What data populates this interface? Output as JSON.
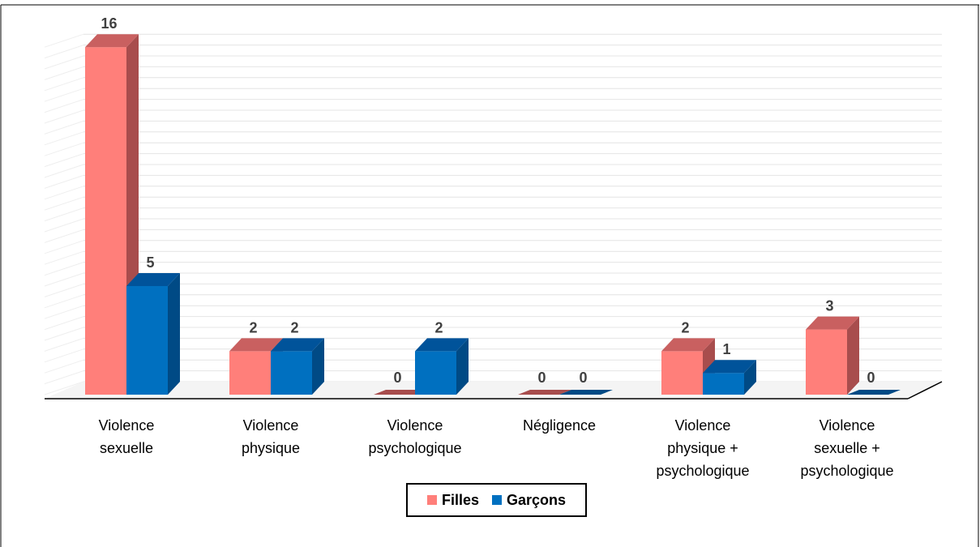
{
  "chart_data": {
    "type": "bar",
    "categories": [
      [
        "Violence",
        "sexuelle"
      ],
      [
        "Violence",
        "physique"
      ],
      [
        "Violence",
        "psychologique"
      ],
      [
        "Négligence"
      ],
      [
        "Violence",
        "physique +",
        "psychologique"
      ],
      [
        "Violence",
        "sexuelle +",
        "psychologique"
      ]
    ],
    "series": [
      {
        "name": "Filles",
        "values": [
          16,
          2,
          0,
          0,
          2,
          3
        ]
      },
      {
        "name": "Garçons",
        "values": [
          5,
          2,
          2,
          0,
          1,
          0
        ]
      }
    ],
    "ylim": [
      0,
      16
    ],
    "grid": true,
    "legend": "bottom",
    "colors": {
      "Filles": {
        "front": "#ff7f7a",
        "side": "#a84d4d",
        "top": "#c96060"
      },
      "Garçons": {
        "front": "#0070c0",
        "side": "#004a85",
        "top": "#00539a"
      }
    }
  },
  "legend": {
    "filles_label": "Filles",
    "garcons_label": "Garçons"
  }
}
